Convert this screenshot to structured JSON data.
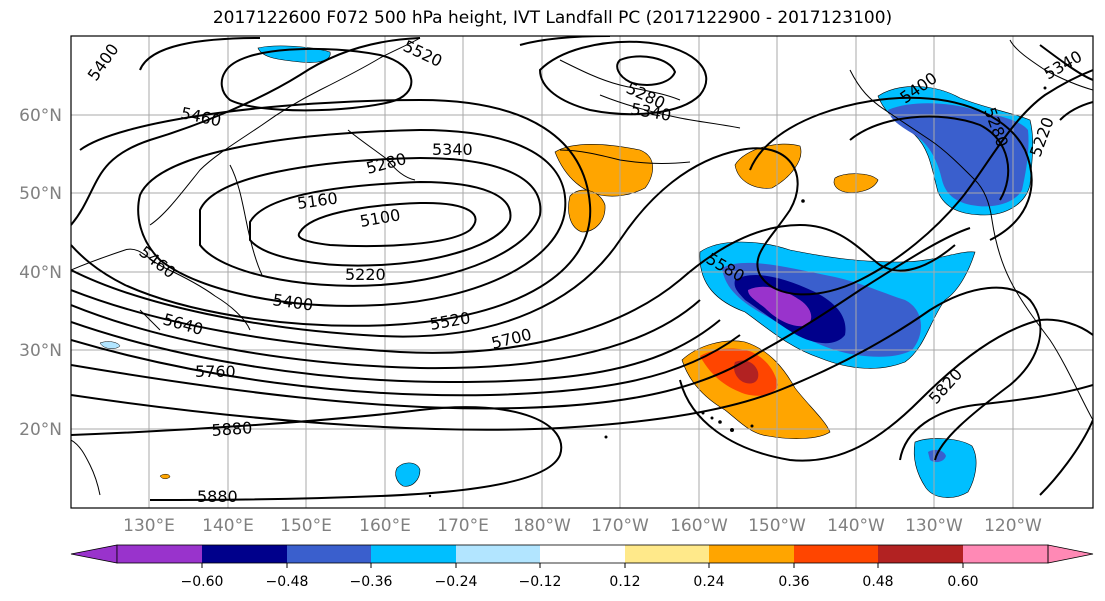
{
  "title": "2017122600 F072 500 hPa height, IVT Landfall PC (2017122900 - 2017123100)",
  "lat_labels": [
    "60°N",
    "50°N",
    "40°N",
    "30°N",
    "20°N"
  ],
  "lon_labels": [
    "130°E",
    "140°E",
    "150°E",
    "160°E",
    "170°E",
    "180°W",
    "170°W",
    "160°W",
    "150°W",
    "140°W",
    "130°W",
    "120°W"
  ],
  "contour_labels": [
    "5400",
    "5520",
    "5460",
    "5280",
    "5340",
    "5340",
    "5280",
    "5160",
    "5100",
    "5220",
    "5400",
    "5520",
    "5700",
    "5460",
    "5640",
    "5760",
    "5880",
    "5880",
    "5580",
    "5400",
    "5280",
    "5220",
    "5340",
    "5820"
  ],
  "colorbar": {
    "ticks": [
      "−0.60",
      "−0.48",
      "−0.36",
      "−0.24",
      "−0.12",
      "0.12",
      "0.24",
      "0.36",
      "0.48",
      "0.60"
    ],
    "colors": [
      "#9933cc",
      "#00008b",
      "#3a5fcd",
      "#00bfff",
      "#b2e5ff",
      "#ffffff",
      "#ffe98a",
      "#ffa500",
      "#ff4500",
      "#b22222",
      "#ff89b5"
    ]
  }
}
